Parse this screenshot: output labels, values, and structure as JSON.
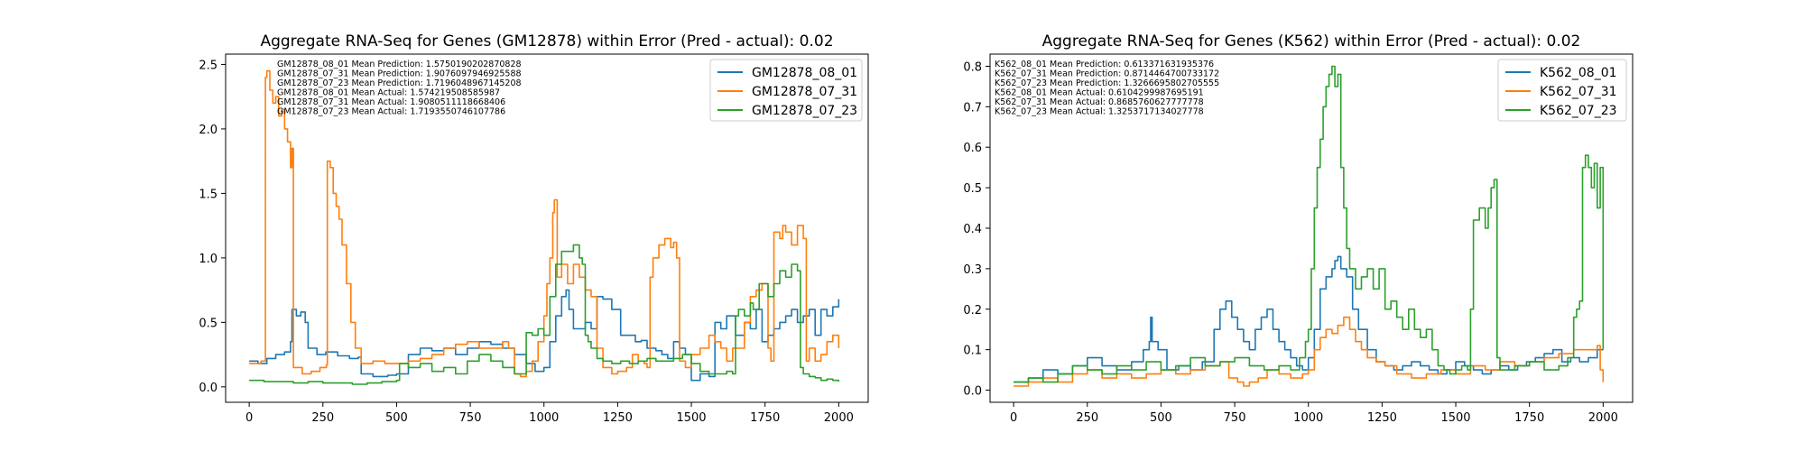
{
  "chart_data": [
    {
      "type": "line",
      "title": "Aggregate RNA-Seq for Genes (GM12878) within Error (Pred - actual): 0.02",
      "xlabel": "",
      "ylabel": "",
      "xlim": [
        -80,
        2100
      ],
      "ylim": [
        -0.12,
        2.58
      ],
      "xticks": [
        0,
        250,
        500,
        750,
        1000,
        1250,
        1500,
        1750,
        2000
      ],
      "yticks": [
        0.0,
        0.5,
        1.0,
        1.5,
        2.0,
        2.5
      ],
      "ytick_labels": [
        "0.0",
        "0.5",
        "1.0",
        "1.5",
        "2.0",
        "2.5"
      ],
      "grid": false,
      "legend_position": "top-right",
      "annotations": [
        "GM12878_08_01 Mean Prediction: 1.5750190202870828",
        "GM12878_07_31 Mean Prediction: 1.9076097946925588",
        "GM12878_07_23 Mean Prediction: 1.7196048967145208",
        "GM12878_08_01 Mean Actual: 1.574219508585987",
        "GM12878_07_31 Mean Actual: 1.9080511118668406",
        "GM12878_07_23 Mean Actual: 1.7193550746107786"
      ],
      "series": [
        {
          "name": "GM12878_08_01",
          "color": "#1f77b4",
          "x": [
            0,
            30,
            60,
            90,
            120,
            140,
            145,
            160,
            175,
            190,
            200,
            230,
            260,
            300,
            340,
            370,
            380,
            420,
            470,
            500,
            540,
            580,
            620,
            660,
            700,
            740,
            780,
            820,
            860,
            900,
            940,
            970,
            1000,
            1020,
            1040,
            1060,
            1075,
            1085,
            1100,
            1120,
            1140,
            1160,
            1180,
            1200,
            1230,
            1260,
            1290,
            1310,
            1330,
            1350,
            1380,
            1400,
            1420,
            1440,
            1460,
            1480,
            1500,
            1530,
            1560,
            1580,
            1600,
            1620,
            1650,
            1680,
            1700,
            1720,
            1740,
            1760,
            1780,
            1800,
            1820,
            1840,
            1860,
            1880,
            1900,
            1920,
            1940,
            1960,
            1980,
            2000
          ],
          "values": [
            0.2,
            0.18,
            0.22,
            0.25,
            0.27,
            0.35,
            0.6,
            0.55,
            0.58,
            0.5,
            0.3,
            0.25,
            0.27,
            0.24,
            0.22,
            0.23,
            0.1,
            0.08,
            0.09,
            0.1,
            0.25,
            0.3,
            0.28,
            0.3,
            0.25,
            0.3,
            0.35,
            0.33,
            0.3,
            0.25,
            0.18,
            0.12,
            0.15,
            0.35,
            0.55,
            0.7,
            0.75,
            0.6,
            0.45,
            0.45,
            0.5,
            0.45,
            0.7,
            0.68,
            0.6,
            0.4,
            0.4,
            0.35,
            0.36,
            0.3,
            0.28,
            0.25,
            0.22,
            0.35,
            0.3,
            0.25,
            0.05,
            0.1,
            0.08,
            0.5,
            0.45,
            0.55,
            0.4,
            0.5,
            0.45,
            0.6,
            0.35,
            0.4,
            0.45,
            0.5,
            0.55,
            0.6,
            0.5,
            0.55,
            0.6,
            0.4,
            0.6,
            0.55,
            0.62,
            0.68
          ]
        },
        {
          "name": "GM12878_07_31",
          "color": "#ff7f0e",
          "x": [
            0,
            40,
            50,
            55,
            60,
            70,
            80,
            90,
            100,
            110,
            120,
            130,
            140,
            145,
            150,
            180,
            210,
            240,
            262,
            265,
            275,
            285,
            295,
            305,
            315,
            330,
            345,
            360,
            380,
            420,
            460,
            500,
            540,
            580,
            620,
            660,
            700,
            740,
            780,
            820,
            860,
            880,
            900,
            920,
            940,
            960,
            980,
            1000,
            1010,
            1020,
            1030,
            1035,
            1045,
            1060,
            1080,
            1100,
            1120,
            1140,
            1160,
            1180,
            1200,
            1230,
            1250,
            1280,
            1300,
            1320,
            1340,
            1350,
            1360,
            1370,
            1390,
            1410,
            1430,
            1440,
            1450,
            1460,
            1480,
            1500,
            1530,
            1560,
            1580,
            1600,
            1620,
            1640,
            1660,
            1680,
            1700,
            1720,
            1740,
            1760,
            1770,
            1780,
            1800,
            1810,
            1820,
            1840,
            1860,
            1880,
            1890,
            1900,
            1920,
            1940,
            1960,
            1980,
            2000
          ],
          "values": [
            0.18,
            0.2,
            0.2,
            2.4,
            2.45,
            2.3,
            2.2,
            2.25,
            2.1,
            2.15,
            2.0,
            1.9,
            1.7,
            1.85,
            0.15,
            0.1,
            0.12,
            0.15,
            0.17,
            1.75,
            1.7,
            1.5,
            1.4,
            1.3,
            1.1,
            0.8,
            0.5,
            0.3,
            0.18,
            0.2,
            0.18,
            0.18,
            0.2,
            0.22,
            0.25,
            0.3,
            0.33,
            0.35,
            0.3,
            0.3,
            0.35,
            0.3,
            0.1,
            0.08,
            0.12,
            0.2,
            0.35,
            0.55,
            0.8,
            1.0,
            1.35,
            1.45,
            0.85,
            0.95,
            0.8,
            0.95,
            0.85,
            0.75,
            0.7,
            0.3,
            0.15,
            0.1,
            0.12,
            0.15,
            0.25,
            0.2,
            0.18,
            0.15,
            0.85,
            1.0,
            1.1,
            1.15,
            1.08,
            1.12,
            1.0,
            0.2,
            0.15,
            0.25,
            0.3,
            0.4,
            0.35,
            0.3,
            0.2,
            0.3,
            0.3,
            0.5,
            0.7,
            0.75,
            0.8,
            0.3,
            0.2,
            1.2,
            1.15,
            1.25,
            1.2,
            1.1,
            1.25,
            1.15,
            0.2,
            0.3,
            0.2,
            0.25,
            0.35,
            0.4,
            0.3
          ]
        },
        {
          "name": "GM12878_07_23",
          "color": "#2ca02c",
          "x": [
            0,
            50,
            100,
            150,
            200,
            250,
            300,
            350,
            400,
            450,
            500,
            510,
            540,
            580,
            620,
            660,
            700,
            740,
            780,
            820,
            860,
            900,
            930,
            940,
            960,
            980,
            1000,
            1020,
            1040,
            1060,
            1080,
            1100,
            1120,
            1130,
            1140,
            1150,
            1160,
            1180,
            1200,
            1230,
            1260,
            1290,
            1320,
            1350,
            1380,
            1410,
            1440,
            1470,
            1500,
            1530,
            1560,
            1590,
            1620,
            1640,
            1650,
            1660,
            1680,
            1700,
            1710,
            1730,
            1760,
            1780,
            1800,
            1820,
            1840,
            1860,
            1870,
            1880,
            1900,
            1920,
            1940,
            1960,
            1980,
            2000
          ],
          "values": [
            0.05,
            0.04,
            0.04,
            0.03,
            0.04,
            0.03,
            0.03,
            0.02,
            0.03,
            0.04,
            0.05,
            0.18,
            0.15,
            0.18,
            0.12,
            0.15,
            0.1,
            0.2,
            0.25,
            0.2,
            0.15,
            0.1,
            0.1,
            0.42,
            0.4,
            0.45,
            0.4,
            0.7,
            0.95,
            1.05,
            1.05,
            1.1,
            1.0,
            0.95,
            0.4,
            0.35,
            0.3,
            0.22,
            0.2,
            0.18,
            0.2,
            0.18,
            0.2,
            0.22,
            0.2,
            0.2,
            0.22,
            0.25,
            0.18,
            0.12,
            0.1,
            0.1,
            0.12,
            0.1,
            0.55,
            0.6,
            0.55,
            0.65,
            0.6,
            0.8,
            0.7,
            0.8,
            0.9,
            0.85,
            0.95,
            0.9,
            0.15,
            0.1,
            0.08,
            0.07,
            0.05,
            0.06,
            0.05,
            0.04
          ]
        }
      ]
    },
    {
      "type": "line",
      "title": "Aggregate RNA-Seq for Genes (K562) within Error (Pred - actual): 0.02",
      "xlabel": "",
      "ylabel": "",
      "xlim": [
        -80,
        2100
      ],
      "ylim": [
        -0.03,
        0.83
      ],
      "xticks": [
        0,
        250,
        500,
        750,
        1000,
        1250,
        1500,
        1750,
        2000
      ],
      "yticks": [
        0.0,
        0.1,
        0.2,
        0.3,
        0.4,
        0.5,
        0.6,
        0.7,
        0.8
      ],
      "ytick_labels": [
        "0.0",
        "0.1",
        "0.2",
        "0.3",
        "0.4",
        "0.5",
        "0.6",
        "0.7",
        "0.8"
      ],
      "grid": false,
      "legend_position": "top-right",
      "annotations": [
        "K562_08_01 Mean Prediction: 0.613371631935376",
        "K562_07_31 Mean Prediction: 0.8714464700733172",
        "K562_07_23 Mean Prediction: 1.3266695802705555",
        "K562_08_01 Mean Actual: 0.6104299987695191",
        "K562_07_31 Mean Actual: 0.8685760627777778",
        "K562_07_23 Mean Actual: 1.3253717134027778"
      ],
      "series": [
        {
          "name": "K562_08_01",
          "color": "#1f77b4",
          "x": [
            0,
            50,
            100,
            150,
            200,
            250,
            300,
            350,
            400,
            440,
            460,
            465,
            470,
            490,
            520,
            560,
            600,
            640,
            680,
            700,
            720,
            740,
            760,
            780,
            800,
            820,
            840,
            860,
            880,
            900,
            920,
            940,
            960,
            980,
            1000,
            1020,
            1040,
            1060,
            1080,
            1090,
            1100,
            1110,
            1130,
            1150,
            1170,
            1200,
            1230,
            1260,
            1290,
            1320,
            1350,
            1380,
            1410,
            1440,
            1470,
            1500,
            1530,
            1560,
            1590,
            1620,
            1650,
            1680,
            1710,
            1740,
            1770,
            1800,
            1830,
            1860,
            1890,
            1920,
            1950,
            1980,
            2000
          ],
          "values": [
            0.02,
            0.03,
            0.05,
            0.04,
            0.06,
            0.08,
            0.06,
            0.05,
            0.07,
            0.1,
            0.12,
            0.18,
            0.12,
            0.1,
            0.05,
            0.06,
            0.05,
            0.07,
            0.15,
            0.2,
            0.22,
            0.18,
            0.15,
            0.12,
            0.1,
            0.15,
            0.18,
            0.2,
            0.15,
            0.12,
            0.1,
            0.08,
            0.06,
            0.05,
            0.08,
            0.15,
            0.25,
            0.28,
            0.3,
            0.32,
            0.33,
            0.3,
            0.28,
            0.2,
            0.15,
            0.1,
            0.07,
            0.06,
            0.05,
            0.06,
            0.07,
            0.06,
            0.05,
            0.04,
            0.05,
            0.07,
            0.06,
            0.05,
            0.04,
            0.05,
            0.06,
            0.05,
            0.06,
            0.07,
            0.08,
            0.09,
            0.1,
            0.07,
            0.08,
            0.07,
            0.08,
            0.1,
            0.1
          ]
        },
        {
          "name": "K562_07_31",
          "color": "#ff7f0e",
          "x": [
            0,
            50,
            100,
            150,
            200,
            250,
            300,
            350,
            400,
            450,
            500,
            550,
            600,
            650,
            700,
            730,
            760,
            780,
            800,
            830,
            860,
            900,
            940,
            980,
            1000,
            1020,
            1040,
            1060,
            1080,
            1100,
            1120,
            1140,
            1160,
            1180,
            1200,
            1230,
            1260,
            1300,
            1350,
            1400,
            1450,
            1500,
            1550,
            1600,
            1650,
            1700,
            1750,
            1800,
            1850,
            1900,
            1950,
            1980,
            1990,
            2000
          ],
          "values": [
            0.01,
            0.02,
            0.03,
            0.02,
            0.04,
            0.05,
            0.03,
            0.04,
            0.03,
            0.04,
            0.05,
            0.04,
            0.05,
            0.06,
            0.07,
            0.03,
            0.02,
            0.01,
            0.02,
            0.03,
            0.05,
            0.04,
            0.03,
            0.04,
            0.05,
            0.1,
            0.13,
            0.15,
            0.14,
            0.16,
            0.18,
            0.15,
            0.12,
            0.1,
            0.08,
            0.07,
            0.06,
            0.04,
            0.03,
            0.04,
            0.05,
            0.04,
            0.06,
            0.05,
            0.07,
            0.06,
            0.07,
            0.08,
            0.09,
            0.1,
            0.1,
            0.11,
            0.05,
            0.02
          ]
        },
        {
          "name": "K562_07_23",
          "color": "#2ca02c",
          "x": [
            0,
            50,
            100,
            150,
            200,
            250,
            300,
            350,
            400,
            450,
            500,
            550,
            600,
            650,
            700,
            750,
            800,
            850,
            900,
            940,
            970,
            990,
            1000,
            1010,
            1020,
            1030,
            1040,
            1050,
            1060,
            1070,
            1080,
            1090,
            1100,
            1110,
            1120,
            1130,
            1140,
            1160,
            1180,
            1200,
            1220,
            1240,
            1260,
            1280,
            1300,
            1320,
            1340,
            1360,
            1380,
            1400,
            1420,
            1440,
            1460,
            1480,
            1500,
            1520,
            1540,
            1550,
            1560,
            1580,
            1600,
            1610,
            1620,
            1630,
            1640,
            1650,
            1700,
            1750,
            1800,
            1850,
            1880,
            1900,
            1910,
            1920,
            1930,
            1940,
            1950,
            1960,
            1970,
            1980,
            1990,
            2000
          ],
          "values": [
            0.02,
            0.03,
            0.02,
            0.04,
            0.06,
            0.05,
            0.04,
            0.06,
            0.05,
            0.07,
            0.05,
            0.06,
            0.08,
            0.06,
            0.07,
            0.08,
            0.06,
            0.05,
            0.06,
            0.05,
            0.08,
            0.12,
            0.15,
            0.3,
            0.45,
            0.55,
            0.62,
            0.7,
            0.75,
            0.78,
            0.8,
            0.75,
            0.78,
            0.55,
            0.45,
            0.35,
            0.3,
            0.25,
            0.28,
            0.3,
            0.25,
            0.3,
            0.2,
            0.22,
            0.18,
            0.15,
            0.2,
            0.15,
            0.13,
            0.15,
            0.1,
            0.06,
            0.05,
            0.04,
            0.05,
            0.06,
            0.05,
            0.2,
            0.42,
            0.45,
            0.4,
            0.45,
            0.5,
            0.52,
            0.08,
            0.05,
            0.06,
            0.07,
            0.05,
            0.06,
            0.08,
            0.18,
            0.2,
            0.22,
            0.55,
            0.58,
            0.55,
            0.5,
            0.56,
            0.45,
            0.55,
            0.1
          ]
        }
      ]
    }
  ]
}
